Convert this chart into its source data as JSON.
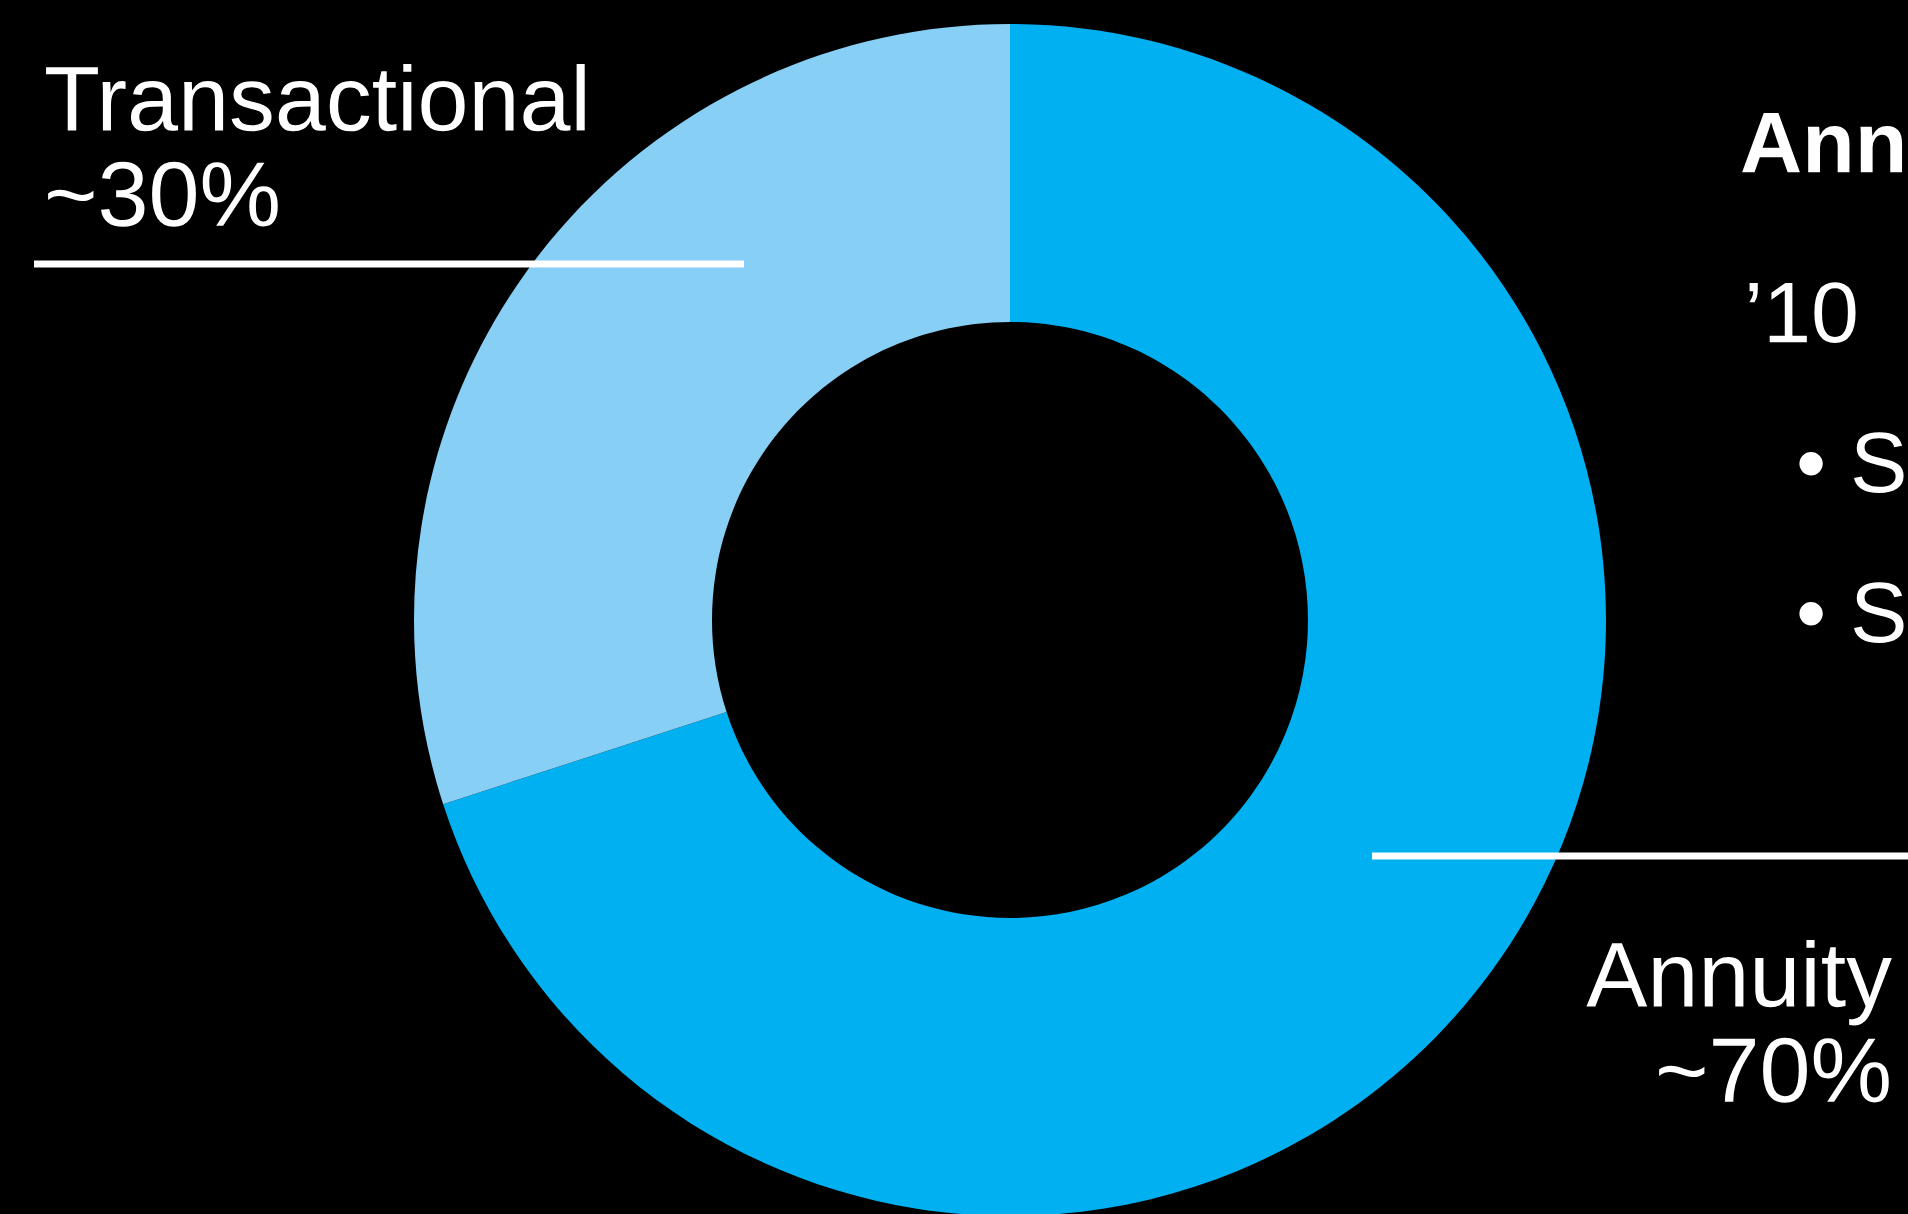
{
  "chart_data": {
    "type": "donut",
    "categories": [
      "Annuity",
      "Transactional"
    ],
    "values": [
      70,
      30
    ],
    "colors": [
      "#00b0f0",
      "#87cff5"
    ],
    "value_labels": [
      "~70%",
      "~30%"
    ],
    "annotations": [
      "Ann",
      "’10",
      "• S",
      "• S"
    ]
  }
}
